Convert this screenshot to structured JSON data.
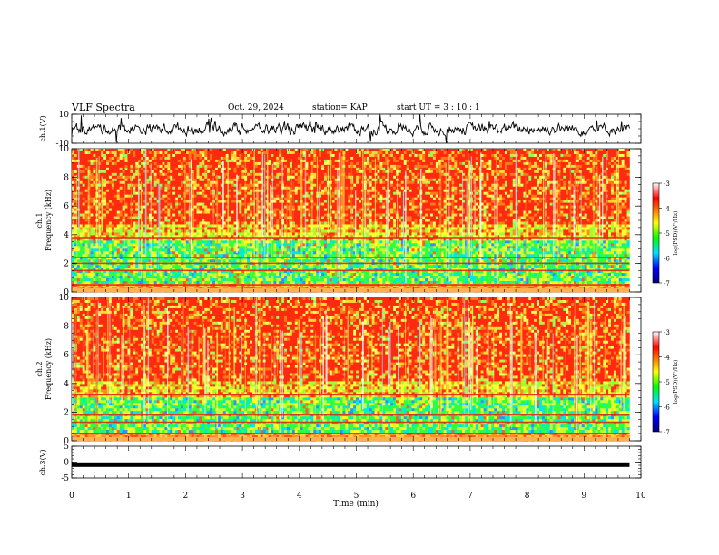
{
  "header": {
    "title": "VLF Spectra",
    "date": "Oct. 29, 2024",
    "station": "station= KAP",
    "start_ut": "start  UT  =   3  : 10 : 1"
  },
  "panels": {
    "ch1_waveform": {
      "ylabel": "ch.1(V)",
      "ylim": [
        -10,
        10
      ],
      "ticks": [
        "10",
        "-10"
      ]
    },
    "ch1_spectrogram": {
      "ylabel": "ch.1\nFrequency  (kHz)",
      "ylim": [
        0,
        10
      ],
      "ticks": [
        "0",
        "2",
        "4",
        "6",
        "8",
        "10"
      ]
    },
    "ch2_spectrogram": {
      "ylabel": "ch.2\nFrequency  (kHz)",
      "ylim": [
        0,
        10
      ],
      "ticks": [
        "0",
        "2",
        "4",
        "6",
        "8",
        "10"
      ]
    },
    "ch3_waveform": {
      "ylabel": "ch.3(V)",
      "ylim": [
        -5,
        5
      ],
      "ticks": [
        "5",
        "0",
        "-5"
      ]
    }
  },
  "colorbars": {
    "label": "log(PSD)(V²/Hz)",
    "ticks": [
      "-3",
      "-4",
      "-5",
      "-6",
      "-7"
    ],
    "range": [
      -7,
      -3
    ],
    "colors": [
      "#000080",
      "#0000ff",
      "#00e0ff",
      "#00ff00",
      "#ffff00",
      "#ff8000",
      "#ff0000",
      "#ffffff"
    ]
  },
  "xaxis": {
    "label": "Time  (min)",
    "ticks": [
      "0",
      "1",
      "2",
      "3",
      "4",
      "5",
      "6",
      "7",
      "8",
      "9",
      "10"
    ],
    "xlim": [
      0,
      10
    ],
    "data_end_min": 9.8
  },
  "chart_data": [
    {
      "type": "line",
      "title": "",
      "ylabel": "ch.1(V)",
      "xlabel": "",
      "xlim": [
        0,
        10
      ],
      "ylim": [
        -10,
        10
      ],
      "x": [
        0,
        0.5,
        1,
        1.5,
        2,
        2.5,
        3,
        3.5,
        4,
        4.5,
        5,
        5.5,
        6,
        6.5,
        7,
        7.5,
        8,
        8.5,
        9,
        9.5,
        9.8
      ],
      "series": [
        {
          "values": [
            0,
            1,
            0,
            -1,
            1,
            0,
            -1,
            0,
            1,
            0,
            -1,
            0,
            1,
            -1,
            0,
            1,
            -1,
            0,
            1,
            0,
            0
          ]
        }
      ]
    },
    {
      "type": "heatmap",
      "title": "",
      "ylabel": "ch.1 Frequency  (kHz)",
      "xlabel": "",
      "xlim": [
        0,
        10
      ],
      "ylim": [
        0,
        10
      ],
      "colorbar": {
        "label": "log(PSD)(V²/Hz)",
        "range": [
          -7,
          -3
        ]
      },
      "bands_khz": [
        0.5,
        1.5,
        2.0,
        2.4,
        3.8
      ],
      "summary": "Broadband impulsive noise at log PSD -4 to -3 above 4 kHz; weaker -5 to -6 region between 1 and 3.5 kHz"
    },
    {
      "type": "heatmap",
      "title": "",
      "ylabel": "ch.2 Frequency  (kHz)",
      "xlabel": "",
      "xlim": [
        0,
        10
      ],
      "ylim": [
        0,
        10
      ],
      "colorbar": {
        "label": "log(PSD)(V²/Hz)",
        "range": [
          -7,
          -3
        ]
      },
      "bands_khz": [
        0.5,
        1.3,
        1.8,
        3.2
      ],
      "summary": "Broadband impulsive noise at log PSD -4 to -3 above 3.5 kHz; weaker -5 to -6 region between 0.8 and 3 kHz"
    },
    {
      "type": "line",
      "title": "",
      "ylabel": "ch.3(V)",
      "xlabel": "Time  (min)",
      "xlim": [
        0,
        10
      ],
      "ylim": [
        -5,
        5
      ],
      "x": [
        0,
        9.8
      ],
      "series": [
        {
          "values": [
            0,
            0
          ]
        }
      ]
    }
  ]
}
